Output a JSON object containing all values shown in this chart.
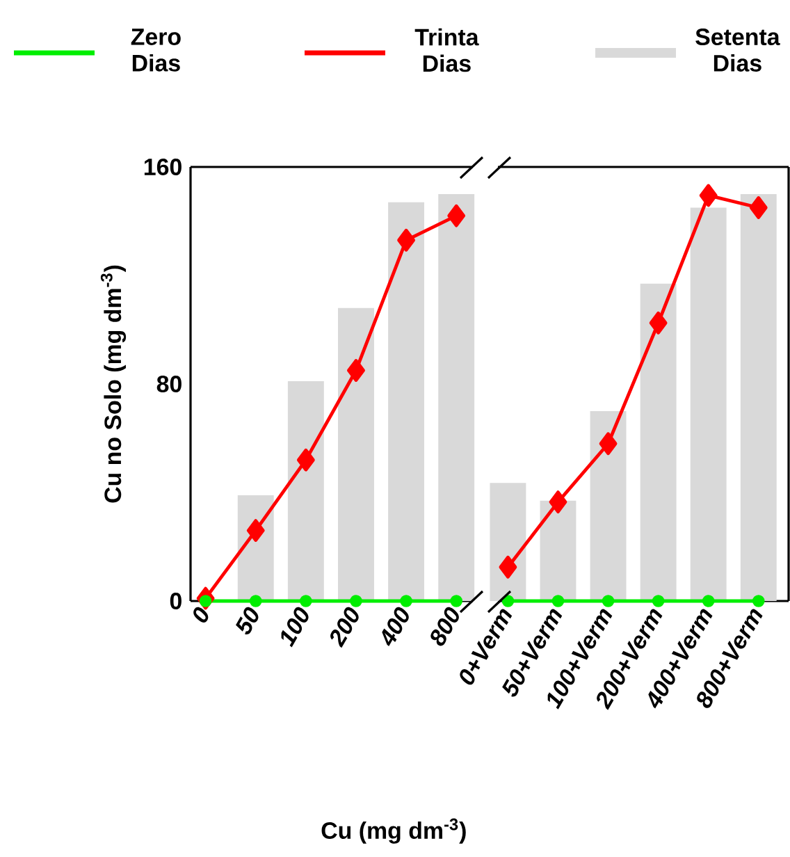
{
  "chart_data": [
    {
      "type": "bar",
      "categories": [
        "0",
        "50",
        "100",
        "200",
        "400",
        "800"
      ],
      "ylabel": "Cu no Solo (mg dm$^{-3}$)",
      "xlabel": "Cu (mg dm$^{-3}$)",
      "ylim": [
        0,
        160
      ],
      "yticks": [
        0,
        80,
        160
      ],
      "legend": "top",
      "series": [
        {
          "name": "Zero Dias",
          "type": "line",
          "color": "#00ee00",
          "marker": "circle",
          "values": [
            0,
            0,
            0,
            0,
            0,
            0
          ]
        },
        {
          "name": "Trinta Dias",
          "type": "line",
          "color": "#ff0000",
          "marker": "diamond",
          "values": [
            1,
            26,
            52,
            85,
            133,
            142
          ]
        },
        {
          "name": "Setenta Dias",
          "color": "#d9d9d9",
          "values": [
            0,
            39,
            81,
            108,
            147,
            150
          ]
        }
      ]
    },
    {
      "type": "bar",
      "categories": [
        "0+Verm",
        "50+Verm",
        "100+Verm",
        "200+Verm",
        "400+Verm",
        "800+Verm"
      ],
      "ylim": [
        0,
        160
      ],
      "yticks": [
        0,
        80,
        160
      ],
      "tick_labels": "x",
      "series": [
        {
          "type": "line",
          "color": "#00ee00",
          "marker": "circle",
          "values": [
            0,
            0,
            0,
            0,
            0,
            0
          ]
        },
        {
          "type": "line",
          "color": "#ff0000",
          "marker": "diamond",
          "values": [
            12.5,
            36.5,
            58,
            102.5,
            149.5,
            145
          ]
        },
        {
          "color": "#d9d9d9",
          "values": [
            43.5,
            37,
            70,
            117,
            145,
            150
          ]
        }
      ]
    }
  ]
}
